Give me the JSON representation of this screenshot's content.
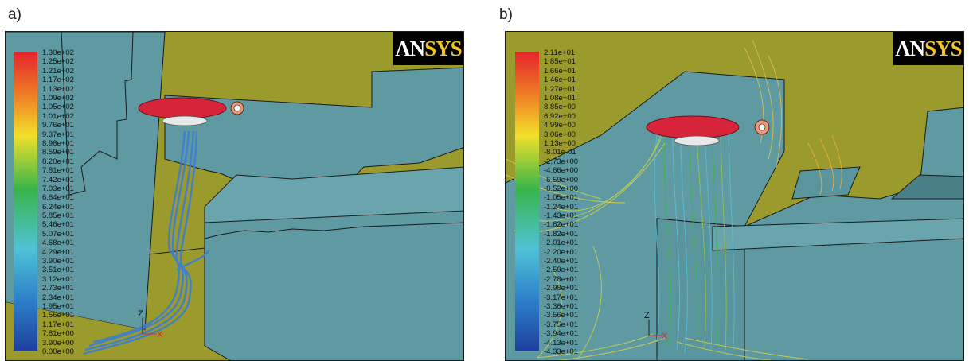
{
  "panels": [
    {
      "label": "a)",
      "logo": {
        "left": "ΛΝ",
        "right": "SYS"
      },
      "colorbar_labels": [
        "1.30e+02",
        "1.25e+02",
        "1.21e+02",
        "1.17e+02",
        "1.13e+02",
        "1.09e+02",
        "1.05e+02",
        "1.01e+02",
        "9.76e+01",
        "9.37e+01",
        "8.98e+01",
        "8.59e+01",
        "8.20e+01",
        "7.81e+01",
        "7.42e+01",
        "7.03e+01",
        "6.64e+01",
        "6.24e+01",
        "5.85e+01",
        "5.46e+01",
        "5.07e+01",
        "4.68e+01",
        "4.29e+01",
        "3.90e+01",
        "3.51e+01",
        "3.12e+01",
        "2.73e+01",
        "2.34e+01",
        "1.95e+01",
        "1.56e+01",
        "1.17e+01",
        "7.81e+00",
        "3.90e+00",
        "0.00e+00"
      ],
      "axes": {
        "z": "Z",
        "x": "X"
      }
    },
    {
      "label": "b)",
      "logo": {
        "left": "ΛΝ",
        "right": "SYS"
      },
      "colorbar_labels": [
        "2.11e+01",
        "1.85e+01",
        "1.66e+01",
        "1.46e+01",
        "1.27e+01",
        "1.08e+01",
        "8.85e+00",
        "6.92e+00",
        "4.99e+00",
        "3.06e+00",
        "1.13e+00",
        "-8.01e-01",
        "-2.73e+00",
        "-4.66e+00",
        "-6.59e+00",
        "-8.52e+00",
        "-1.05e+01",
        "-1.24e+01",
        "-1.43e+01",
        "-1.62e+01",
        "-1.82e+01",
        "-2.01e+01",
        "-2.20e+01",
        "-2.40e+01",
        "-2.59e+01",
        "-2.78e+01",
        "-2.98e+01",
        "-3.17e+01",
        "-3.36e+01",
        "-3.56e+01",
        "-3.75e+01",
        "-3.94e+01",
        "-4.13e+01",
        "-4.33e+01"
      ],
      "axes": {
        "z": "Z",
        "x": "X"
      }
    }
  ],
  "colors": {
    "background": "#9b9a2d",
    "building": "#5f9aa3",
    "edge": "#1a1a1a",
    "disc": "#d8243a",
    "stream_a": "#3c7fd0",
    "stream_b": "#c8d24a"
  }
}
